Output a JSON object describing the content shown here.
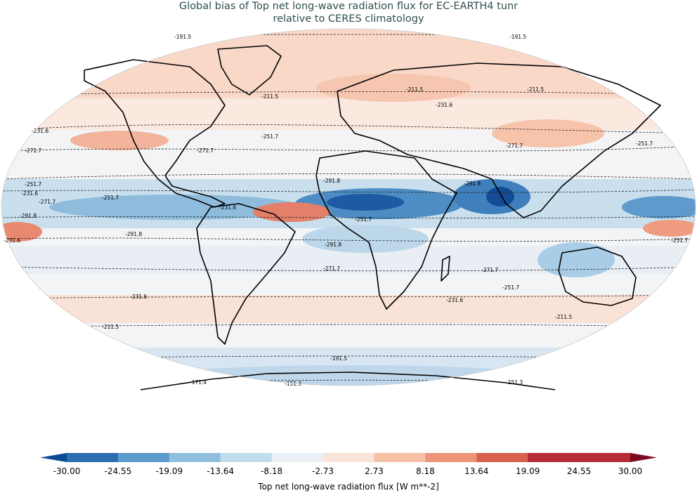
{
  "title": {
    "line1": "Global bias of Top net long-wave radiation flux for EC-EARTH4 tunr",
    "line2": "relative to CERES climatology"
  },
  "colorbar": {
    "label": "Top net long-wave radiation flux [W m**-2]",
    "ticks": [
      "-30.00",
      "-24.55",
      "-19.09",
      "-13.64",
      "-8.18",
      "-2.73",
      "2.73",
      "8.18",
      "13.64",
      "19.09",
      "24.55",
      "30.00"
    ],
    "colors": [
      "#0c4a92",
      "#2c6cb0",
      "#5a9bcb",
      "#8fbfdf",
      "#c1dced",
      "#e9f0f5",
      "#f9e4d8",
      "#f6c0a6",
      "#ec9378",
      "#d8604e",
      "#b52a35",
      "#7b0a22"
    ]
  },
  "contour_labels": [
    {
      "text": "-191.5"
    },
    {
      "text": "-191.5"
    },
    {
      "text": "-211.5"
    },
    {
      "text": "-211.5"
    },
    {
      "text": "-231.6"
    },
    {
      "text": "-231.6"
    },
    {
      "text": "-251.7"
    },
    {
      "text": "-251.7"
    },
    {
      "text": "-271.7"
    },
    {
      "text": "-271.7"
    },
    {
      "text": "-271.7"
    },
    {
      "text": "-251.7"
    },
    {
      "text": "-231.6"
    },
    {
      "text": "-251.7"
    },
    {
      "text": "-271.7"
    },
    {
      "text": "-291.8"
    },
    {
      "text": "-291.8"
    },
    {
      "text": "-291.8"
    },
    {
      "text": "-231.6"
    },
    {
      "text": "-251.7"
    },
    {
      "text": "-291.8"
    },
    {
      "text": "-291.8"
    },
    {
      "text": "-271.7"
    },
    {
      "text": "-251.7"
    },
    {
      "text": "-231.6"
    },
    {
      "text": "-231.6"
    },
    {
      "text": "-211.5"
    },
    {
      "text": "-211.5"
    },
    {
      "text": "-191.5"
    },
    {
      "text": "-171.4"
    },
    {
      "text": "-151.3"
    },
    {
      "text": "-151.3"
    },
    {
      "text": "-271.7"
    },
    {
      "text": "-211.5"
    },
    {
      "text": "-251.7"
    },
    {
      "text": "-231.6"
    }
  ]
}
